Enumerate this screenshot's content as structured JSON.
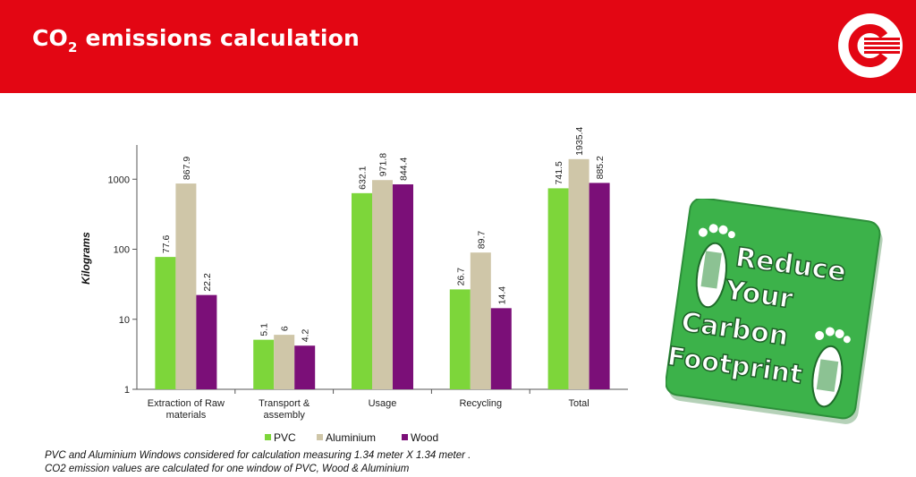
{
  "header": {
    "title_before": "CO",
    "title_sub": "2",
    "title_after": " emissions calculation",
    "background_color": "#e30613",
    "logo_icon": "company-logo-icon"
  },
  "chart_data": {
    "type": "bar",
    "categories": [
      "Extraction of Raw materials",
      "Transport & assembly",
      "Usage",
      "Recycling",
      "Total"
    ],
    "category_lines": [
      [
        "Extraction of Raw",
        "materials"
      ],
      [
        "Transport &",
        "assembly"
      ],
      [
        "Usage"
      ],
      [
        "Recycling"
      ],
      [
        "Total"
      ]
    ],
    "series": [
      {
        "name": "PVC",
        "color": "#7dd63a",
        "values": [
          77.6,
          5.1,
          632.1,
          26.7,
          741.5
        ]
      },
      {
        "name": "Aluminium",
        "color": "#cfc6a8",
        "values": [
          867.9,
          6,
          971.8,
          89.7,
          1935.4
        ]
      },
      {
        "name": "Wood",
        "color": "#7b0f78",
        "values": [
          22.2,
          4.2,
          844.4,
          14.4,
          885.2
        ]
      }
    ],
    "data_labels": [
      [
        "77.6",
        "5.1",
        "632.1",
        "26.7",
        "741.5"
      ],
      [
        "867.9",
        "6",
        "971.8",
        "89.7",
        "1935.4"
      ],
      [
        "22.2",
        "4.2",
        "844.4",
        "14.4",
        "885.2"
      ]
    ],
    "ylabel": "Kilograms",
    "xlabel": "",
    "yscale": "log",
    "ylim": [
      1,
      10000
    ],
    "yticks": [
      1,
      10,
      100,
      1000
    ],
    "ytick_labels": [
      "1",
      "10",
      "100",
      "1000"
    ],
    "grid": false,
    "legend_position": "bottom"
  },
  "notes": [
    "PVC and Aluminium Windows considered for calculation measuring 1.34 meter X 1.34 meter .",
    "CO2 emission values are calculated for one window  of PVC, Wood & Aluminium"
  ],
  "badge": {
    "lines": [
      "Reduce",
      "Your",
      "Carbon",
      "Footprint"
    ],
    "background_color": "#3cb24a",
    "icon": "carbon-footprint-icon"
  }
}
